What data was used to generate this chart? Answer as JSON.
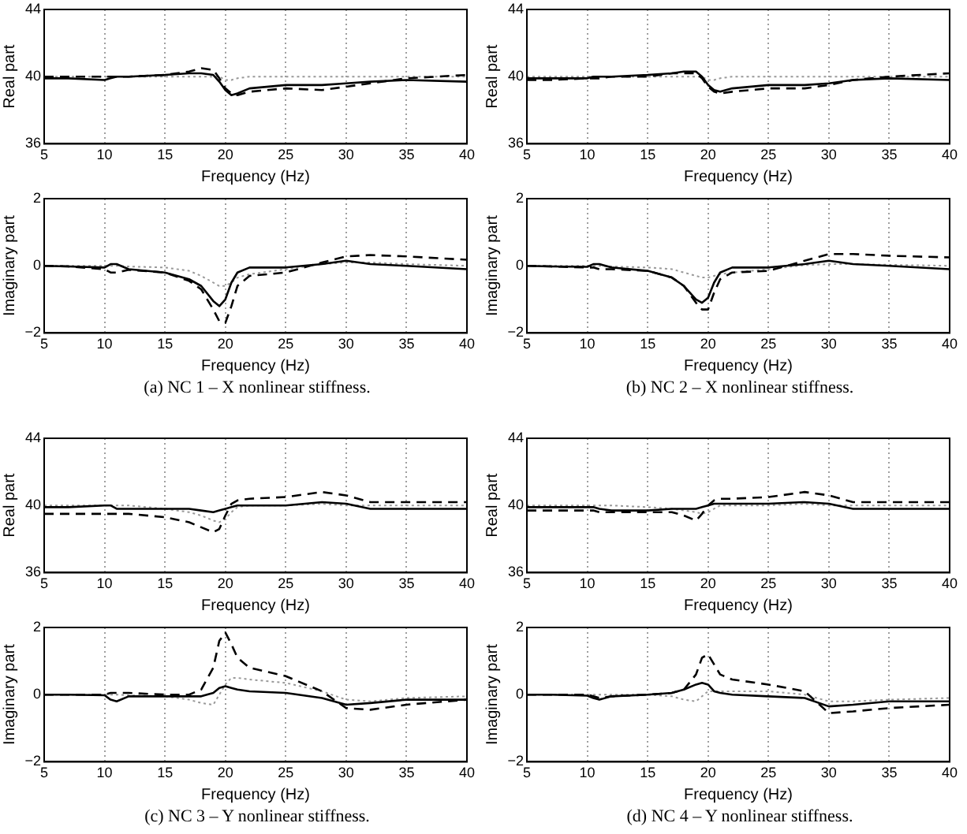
{
  "chart_data": [
    {
      "type": "line",
      "xlabel": "Frequency (Hz)",
      "ylabel": "Real part",
      "xlim": [
        5,
        40
      ],
      "xticks": [
        5,
        10,
        15,
        20,
        25,
        30,
        35,
        40
      ],
      "ylim": [
        36,
        44
      ],
      "yticks": [
        36,
        40,
        44
      ],
      "grid": "x",
      "legend": false,
      "marker": "none",
      "x": [
        5,
        7,
        10,
        10.5,
        11,
        12,
        15,
        17,
        18,
        19,
        19.5,
        20,
        20.5,
        21,
        22,
        25,
        28,
        30,
        32,
        35,
        40
      ],
      "series": [
        {
          "color": "#000000",
          "line_style": "solid",
          "values": [
            39.9,
            39.9,
            39.8,
            39.9,
            40.0,
            40.0,
            40.1,
            40.2,
            40.2,
            40.1,
            39.7,
            39.2,
            38.9,
            39.0,
            39.3,
            39.5,
            39.5,
            39.6,
            39.7,
            39.8,
            39.7
          ]
        },
        {
          "color": "#000000",
          "line_style": "dashed",
          "values": [
            40.0,
            40.0,
            40.0,
            40.0,
            40.0,
            40.0,
            40.1,
            40.3,
            40.5,
            40.4,
            39.9,
            39.3,
            39.0,
            38.9,
            39.1,
            39.3,
            39.2,
            39.4,
            39.6,
            39.9,
            40.1
          ]
        },
        {
          "color": "#999999",
          "line_style": "dotted",
          "values": [
            40.0,
            40.0,
            40.0,
            40.0,
            40.0,
            40.0,
            40.0,
            40.0,
            40.0,
            40.0,
            40.0,
            39.8,
            39.8,
            39.9,
            40.0,
            40.0,
            40.0,
            40.0,
            40.0,
            40.0,
            40.0
          ]
        }
      ]
    },
    {
      "type": "line",
      "xlabel": "Frequency (Hz)",
      "ylabel": "Real part",
      "xlim": [
        5,
        40
      ],
      "xticks": [
        5,
        10,
        15,
        20,
        25,
        30,
        35,
        40
      ],
      "ylim": [
        36,
        44
      ],
      "yticks": [
        36,
        40,
        44
      ],
      "grid": "x",
      "legend": false,
      "marker": "none",
      "x": [
        5,
        7,
        10,
        10.5,
        11,
        12,
        15,
        17,
        18,
        19,
        19.5,
        20,
        20.5,
        21,
        22,
        25,
        28,
        30,
        32,
        35,
        40
      ],
      "series": [
        {
          "color": "#000000",
          "line_style": "solid",
          "values": [
            39.9,
            39.9,
            39.9,
            40.0,
            40.0,
            40.0,
            40.1,
            40.2,
            40.3,
            40.3,
            40.0,
            39.5,
            39.2,
            39.1,
            39.3,
            39.5,
            39.5,
            39.6,
            39.8,
            39.9,
            39.8
          ]
        },
        {
          "color": "#000000",
          "line_style": "dashed",
          "values": [
            39.8,
            39.8,
            39.9,
            39.9,
            39.9,
            40.0,
            40.0,
            40.2,
            40.2,
            40.2,
            39.9,
            39.4,
            39.1,
            39.0,
            39.1,
            39.3,
            39.3,
            39.5,
            39.8,
            40.0,
            40.2
          ]
        },
        {
          "color": "#999999",
          "line_style": "dotted",
          "values": [
            40.0,
            40.0,
            40.0,
            40.0,
            40.0,
            40.0,
            40.0,
            40.0,
            40.0,
            40.0,
            40.0,
            39.8,
            39.8,
            39.9,
            40.0,
            40.0,
            40.0,
            40.0,
            40.0,
            40.0,
            40.0
          ]
        }
      ]
    },
    {
      "type": "line",
      "xlabel": "Frequency (Hz)",
      "ylabel": "Imaginary part",
      "xlim": [
        5,
        40
      ],
      "xticks": [
        5,
        10,
        15,
        20,
        25,
        30,
        35,
        40
      ],
      "ylim": [
        -2,
        2
      ],
      "yticks": [
        -2,
        0,
        2
      ],
      "grid": "x",
      "legend": false,
      "marker": "none",
      "annotations": [
        "(a) NC 1 – X nonlinear stiffness."
      ],
      "x": [
        5,
        7,
        10,
        10.5,
        11,
        12,
        15,
        17,
        18,
        19,
        19.5,
        20,
        20.5,
        21,
        22,
        25,
        28,
        30,
        32,
        35,
        40
      ],
      "series": [
        {
          "color": "#000000",
          "line_style": "solid",
          "values": [
            0,
            -0.02,
            -0.05,
            0.05,
            0.05,
            -0.1,
            -0.2,
            -0.4,
            -0.6,
            -1.05,
            -1.2,
            -1.0,
            -0.5,
            -0.2,
            -0.05,
            -0.05,
            0.05,
            0.15,
            0.05,
            0,
            -0.1
          ]
        },
        {
          "color": "#000000",
          "line_style": "dashed",
          "values": [
            0,
            -0.02,
            -0.1,
            -0.2,
            -0.2,
            -0.12,
            -0.2,
            -0.45,
            -0.7,
            -1.3,
            -1.65,
            -1.7,
            -1.2,
            -0.6,
            -0.3,
            -0.2,
            0.1,
            0.28,
            0.32,
            0.28,
            0.18
          ]
        },
        {
          "color": "#999999",
          "line_style": "dotted",
          "values": [
            0,
            0,
            0,
            0,
            0,
            -0.02,
            -0.05,
            -0.15,
            -0.3,
            -0.5,
            -0.6,
            -0.6,
            -0.5,
            -0.35,
            -0.25,
            -0.1,
            0.05,
            0.1,
            0.1,
            0.05,
            0
          ]
        }
      ]
    },
    {
      "type": "line",
      "xlabel": "Frequency (Hz)",
      "ylabel": "Imaginary part",
      "xlim": [
        5,
        40
      ],
      "xticks": [
        5,
        10,
        15,
        20,
        25,
        30,
        35,
        40
      ],
      "ylim": [
        -2,
        2
      ],
      "yticks": [
        -2,
        0,
        2
      ],
      "grid": "x",
      "legend": false,
      "marker": "none",
      "annotations": [
        "(b) NC 2 – X nonlinear stiffness."
      ],
      "x": [
        5,
        7,
        10,
        10.5,
        11,
        12,
        15,
        17,
        18,
        19,
        19.5,
        20,
        20.5,
        21,
        22,
        25,
        28,
        30,
        32,
        35,
        40
      ],
      "series": [
        {
          "color": "#000000",
          "line_style": "solid",
          "values": [
            0,
            -0.02,
            -0.03,
            0.05,
            0.05,
            -0.05,
            -0.15,
            -0.35,
            -0.6,
            -1.0,
            -1.1,
            -0.95,
            -0.5,
            -0.2,
            -0.05,
            -0.05,
            0.05,
            0.15,
            0.05,
            0,
            -0.1
          ]
        },
        {
          "color": "#000000",
          "line_style": "dashed",
          "values": [
            0,
            -0.02,
            -0.05,
            -0.05,
            -0.1,
            -0.1,
            -0.15,
            -0.35,
            -0.6,
            -1.1,
            -1.3,
            -1.3,
            -0.8,
            -0.4,
            -0.2,
            -0.15,
            0.15,
            0.35,
            0.35,
            0.3,
            0.25
          ]
        },
        {
          "color": "#999999",
          "line_style": "dotted",
          "values": [
            0,
            0,
            0,
            0,
            0,
            -0.02,
            -0.05,
            -0.1,
            -0.2,
            -0.3,
            -0.35,
            -0.35,
            -0.3,
            -0.25,
            -0.2,
            -0.1,
            0.02,
            0.05,
            0.05,
            0.03,
            0
          ]
        }
      ]
    },
    {
      "type": "line",
      "xlabel": "Frequency (Hz)",
      "ylabel": "Real part",
      "xlim": [
        5,
        40
      ],
      "xticks": [
        5,
        10,
        15,
        20,
        25,
        30,
        35,
        40
      ],
      "ylim": [
        36,
        44
      ],
      "yticks": [
        36,
        40,
        44
      ],
      "grid": "x",
      "legend": false,
      "marker": "none",
      "x": [
        5,
        7,
        10,
        10.5,
        11,
        12,
        15,
        17,
        18,
        19,
        19.5,
        20,
        20.5,
        21,
        22,
        25,
        28,
        30,
        32,
        35,
        40
      ],
      "series": [
        {
          "color": "#000000",
          "line_style": "solid",
          "values": [
            39.9,
            39.9,
            40.0,
            40.0,
            39.8,
            39.8,
            39.8,
            39.8,
            39.7,
            39.6,
            39.7,
            39.8,
            39.9,
            40.0,
            40.0,
            40.0,
            40.2,
            40.1,
            39.8,
            39.8,
            39.8
          ]
        },
        {
          "color": "#000000",
          "line_style": "dashed",
          "values": [
            39.5,
            39.5,
            39.5,
            39.5,
            39.5,
            39.5,
            39.3,
            39.0,
            38.7,
            38.4,
            38.6,
            39.4,
            40.1,
            40.3,
            40.4,
            40.5,
            40.8,
            40.6,
            40.2,
            40.2,
            40.2
          ]
        },
        {
          "color": "#999999",
          "line_style": "dotted",
          "values": [
            40.0,
            40.0,
            40.0,
            40.0,
            40.0,
            40.0,
            39.8,
            39.6,
            39.4,
            39.1,
            39.0,
            39.2,
            39.6,
            39.9,
            40.0,
            40.0,
            40.1,
            40.0,
            40.0,
            40.0,
            40.0
          ]
        }
      ]
    },
    {
      "type": "line",
      "xlabel": "Frequency (Hz)",
      "ylabel": "Real part",
      "xlim": [
        5,
        40
      ],
      "xticks": [
        5,
        10,
        15,
        20,
        25,
        30,
        35,
        40
      ],
      "ylim": [
        36,
        44
      ],
      "yticks": [
        36,
        40,
        44
      ],
      "grid": "x",
      "legend": false,
      "marker": "none",
      "x": [
        5,
        7,
        10,
        10.5,
        11,
        12,
        15,
        17,
        18,
        19,
        19.5,
        20,
        20.5,
        21,
        22,
        25,
        28,
        30,
        32,
        35,
        40
      ],
      "series": [
        {
          "color": "#000000",
          "line_style": "solid",
          "values": [
            39.9,
            39.9,
            39.9,
            39.9,
            39.8,
            39.7,
            39.7,
            39.8,
            39.8,
            39.8,
            39.9,
            40.0,
            40.1,
            40.1,
            40.1,
            40.1,
            40.2,
            40.1,
            39.8,
            39.8,
            39.8
          ]
        },
        {
          "color": "#000000",
          "line_style": "dashed",
          "values": [
            39.7,
            39.7,
            39.7,
            39.7,
            39.6,
            39.6,
            39.6,
            39.6,
            39.4,
            39.1,
            39.5,
            40.0,
            40.3,
            40.4,
            40.4,
            40.5,
            40.8,
            40.6,
            40.2,
            40.2,
            40.2
          ]
        },
        {
          "color": "#999999",
          "line_style": "dotted",
          "values": [
            40.0,
            40.0,
            40.0,
            40.0,
            40.0,
            40.0,
            39.9,
            39.8,
            39.7,
            39.6,
            39.5,
            39.6,
            39.8,
            40.0,
            40.0,
            40.0,
            40.1,
            40.0,
            40.0,
            40.0,
            40.0
          ]
        }
      ]
    },
    {
      "type": "line",
      "xlabel": "Frequency (Hz)",
      "ylabel": "Imaginary part",
      "xlim": [
        5,
        40
      ],
      "xticks": [
        5,
        10,
        15,
        20,
        25,
        30,
        35,
        40
      ],
      "ylim": [
        -2,
        2
      ],
      "yticks": [
        -2,
        0,
        2
      ],
      "grid": "x",
      "legend": false,
      "marker": "none",
      "annotations": [
        "(c) NC 3 – Y nonlinear stiffness."
      ],
      "x": [
        5,
        7,
        10,
        10.5,
        11,
        12,
        15,
        17,
        18,
        19,
        19.5,
        20,
        20.5,
        21,
        22,
        25,
        28,
        30,
        32,
        35,
        40
      ],
      "series": [
        {
          "color": "#000000",
          "line_style": "solid",
          "values": [
            0,
            0,
            -0.02,
            -0.15,
            -0.2,
            -0.05,
            -0.05,
            -0.05,
            -0.05,
            0.05,
            0.2,
            0.25,
            0.2,
            0.15,
            0.1,
            0.05,
            -0.1,
            -0.3,
            -0.25,
            -0.15,
            -0.15
          ]
        },
        {
          "color": "#000000",
          "line_style": "dashed",
          "values": [
            0,
            0,
            0,
            0.05,
            0.05,
            0.05,
            0,
            0,
            0.15,
            0.8,
            1.6,
            1.85,
            1.5,
            1.1,
            0.8,
            0.55,
            0.1,
            -0.4,
            -0.45,
            -0.3,
            -0.15
          ]
        },
        {
          "color": "#999999",
          "line_style": "dotted",
          "values": [
            0,
            0,
            0,
            0,
            0,
            -0.02,
            -0.05,
            -0.15,
            -0.25,
            -0.3,
            0,
            0.3,
            0.5,
            0.5,
            0.45,
            0.35,
            0.1,
            -0.15,
            -0.2,
            -0.1,
            -0.05
          ]
        }
      ]
    },
    {
      "type": "line",
      "xlabel": "Frequency (Hz)",
      "ylabel": "Imaginary part",
      "xlim": [
        5,
        40
      ],
      "xticks": [
        5,
        10,
        15,
        20,
        25,
        30,
        35,
        40
      ],
      "ylim": [
        -2,
        2
      ],
      "yticks": [
        -2,
        0,
        2
      ],
      "grid": "x",
      "legend": false,
      "marker": "none",
      "annotations": [
        "(d) NC 4 – Y nonlinear stiffness."
      ],
      "x": [
        5,
        7,
        10,
        10.5,
        11,
        12,
        15,
        17,
        18,
        19,
        19.5,
        20,
        20.5,
        21,
        22,
        25,
        28,
        30,
        32,
        35,
        40
      ],
      "series": [
        {
          "color": "#000000",
          "line_style": "solid",
          "values": [
            0,
            0,
            -0.03,
            -0.1,
            -0.15,
            -0.05,
            0,
            0.05,
            0.15,
            0.3,
            0.35,
            0.3,
            0.1,
            0.05,
            0,
            -0.05,
            -0.1,
            -0.35,
            -0.3,
            -0.2,
            -0.2
          ]
        },
        {
          "color": "#000000",
          "line_style": "dashed",
          "values": [
            0,
            0,
            0,
            -0.05,
            -0.1,
            -0.05,
            0,
            0.05,
            0.15,
            0.6,
            1.1,
            1.2,
            0.9,
            0.6,
            0.45,
            0.3,
            0.1,
            -0.55,
            -0.5,
            -0.4,
            -0.3
          ]
        },
        {
          "color": "#999999",
          "line_style": "dotted",
          "values": [
            0,
            0,
            0,
            0,
            0,
            0,
            0,
            -0.05,
            -0.15,
            -0.2,
            -0.05,
            0.1,
            0.1,
            0.1,
            0.1,
            0.1,
            0,
            -0.2,
            -0.2,
            -0.15,
            -0.1
          ]
        }
      ]
    }
  ]
}
